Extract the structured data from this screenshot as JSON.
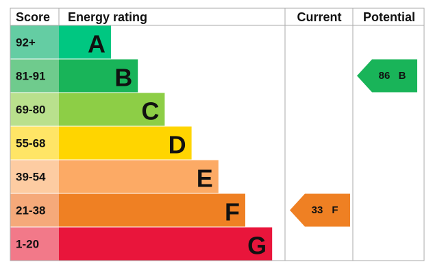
{
  "header": {
    "score": "Score",
    "rating": "Energy rating",
    "current": "Current",
    "potential": "Potential"
  },
  "bands": [
    {
      "score": "92+",
      "letter": "A",
      "color": "#00c781",
      "score_color": "#64cda3"
    },
    {
      "score": "81-91",
      "letter": "B",
      "color": "#19b459",
      "score_color": "#6fcb8d"
    },
    {
      "score": "69-80",
      "letter": "C",
      "color": "#8dce46",
      "score_color": "#b9e08d"
    },
    {
      "score": "55-68",
      "letter": "D",
      "color": "#ffd500",
      "score_color": "#ffe566"
    },
    {
      "score": "39-54",
      "letter": "E",
      "color": "#fcaa65",
      "score_color": "#fdcca2"
    },
    {
      "score": "21-38",
      "letter": "F",
      "color": "#ef8023",
      "score_color": "#f5a97a"
    },
    {
      "score": "1-20",
      "letter": "G",
      "color": "#e9153b",
      "score_color": "#f27989"
    }
  ],
  "current": {
    "value": 33,
    "letter": "F"
  },
  "potential": {
    "value": 86,
    "letter": "B"
  }
}
